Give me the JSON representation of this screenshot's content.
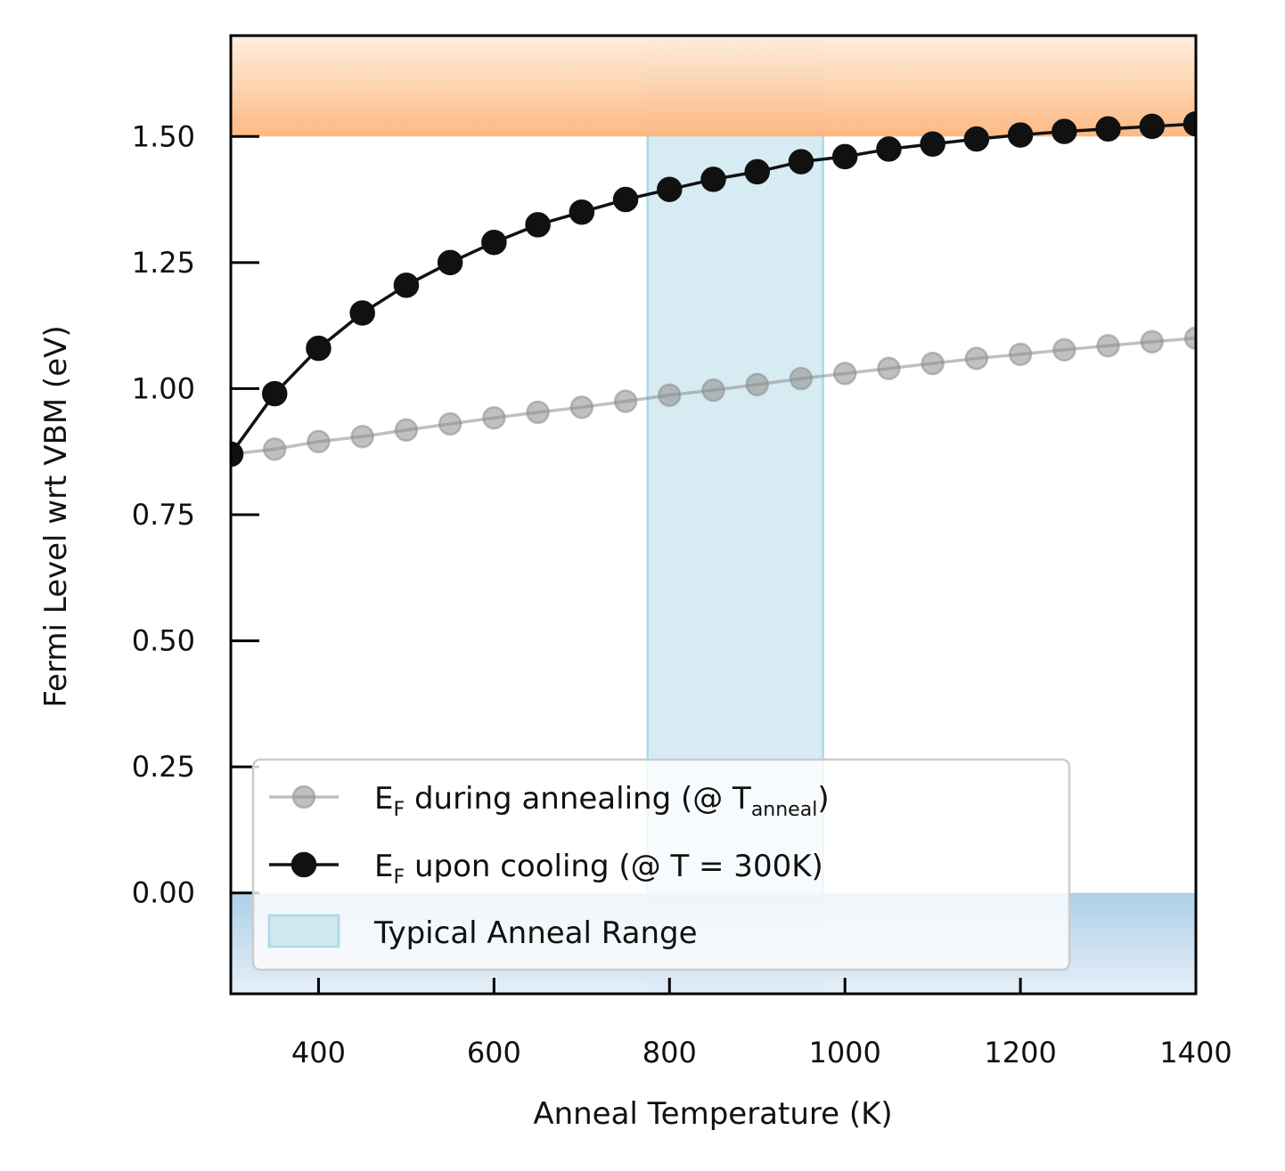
{
  "chart_data": {
    "type": "line",
    "xlabel": "Anneal Temperature (K)",
    "ylabel": "Fermi Level wrt VBM (eV)",
    "xlim": [
      300,
      1400
    ],
    "ylim": [
      -0.2,
      1.7
    ],
    "xticks": [
      "400",
      "600",
      "800",
      "1000",
      "1200",
      "1400"
    ],
    "yticks": [
      "0.00",
      "0.25",
      "0.50",
      "0.75",
      "1.00",
      "1.25",
      "1.50"
    ],
    "x": [
      300,
      350,
      400,
      450,
      500,
      550,
      600,
      650,
      700,
      750,
      800,
      850,
      900,
      950,
      1000,
      1050,
      1100,
      1150,
      1200,
      1250,
      1300,
      1350,
      1400
    ],
    "series": [
      {
        "name": "E_F during annealing (@ T_anneal)",
        "color": "#8c8c8c",
        "values": [
          0.87,
          0.88,
          0.895,
          0.905,
          0.918,
          0.93,
          0.942,
          0.953,
          0.963,
          0.975,
          0.987,
          0.997,
          1.008,
          1.02,
          1.03,
          1.04,
          1.05,
          1.06,
          1.068,
          1.077,
          1.085,
          1.093,
          1.1
        ]
      },
      {
        "name": "E_F upon cooling (@ T = 300K)",
        "color": "#111111",
        "values": [
          0.87,
          0.99,
          1.08,
          1.15,
          1.205,
          1.25,
          1.29,
          1.325,
          1.35,
          1.375,
          1.395,
          1.415,
          1.43,
          1.45,
          1.46,
          1.475,
          1.485,
          1.495,
          1.503,
          1.51,
          1.515,
          1.52,
          1.525
        ]
      }
    ],
    "shaded_regions": [
      {
        "name": "Typical Anneal Range",
        "axis": "x",
        "range": [
          775,
          975
        ],
        "color": "#add8e6"
      },
      {
        "axis": "y",
        "range": [
          1.5,
          1.7
        ],
        "color": "#fdb27a"
      },
      {
        "axis": "y",
        "range": [
          -0.2,
          0.0
        ],
        "color": "#a8cce4"
      }
    ],
    "legend": {
      "placement": "lower-left",
      "entries": [
        {
          "prefix": "E",
          "sub1": "F",
          "mid": " during annealing (@ T",
          "sub2": "anneal",
          "suffix": ")"
        },
        {
          "prefix": "E",
          "sub1": "F",
          "mid": " upon cooling (@ T = 300K)",
          "sub2": "",
          "suffix": ""
        },
        {
          "prefix": "Typical Anneal Range",
          "sub1": "",
          "mid": "",
          "sub2": "",
          "suffix": ""
        }
      ]
    },
    "grid": false
  }
}
